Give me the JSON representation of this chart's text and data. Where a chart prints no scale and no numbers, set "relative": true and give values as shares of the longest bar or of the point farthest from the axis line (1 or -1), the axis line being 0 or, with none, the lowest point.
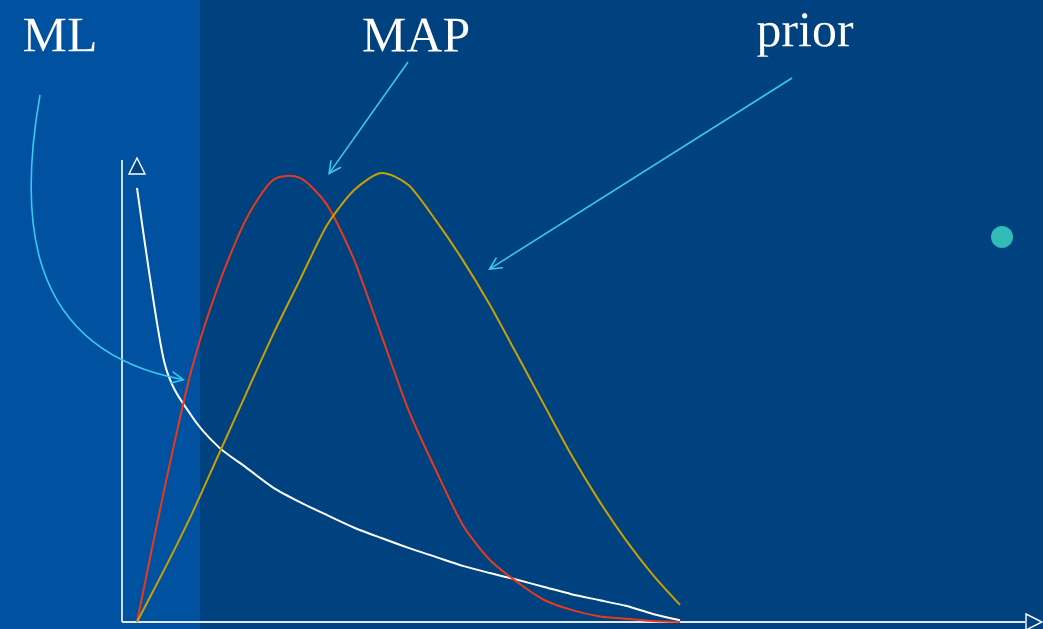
{
  "chart_data": {
    "type": "line",
    "relative": true,
    "marker": "none",
    "line_style": "solid",
    "categories": [
      null,
      null,
      null,
      null,
      null,
      null,
      null,
      null,
      null,
      null,
      null,
      null,
      null,
      null,
      null,
      null,
      null,
      null,
      null,
      null,
      null
    ],
    "series": [
      {
        "name": "ML",
        "color": "#ffffff",
        "values": [
          0.967,
          0.58,
          0.46,
          0.39,
          0.345,
          0.3,
          0.267,
          0.238,
          0.21,
          0.187,
          0.165,
          0.145,
          0.125,
          0.109,
          0.094,
          0.078,
          0.062,
          0.049,
          0.036,
          0.018,
          0.004
        ]
      },
      {
        "name": "MAP",
        "color": "#e8391d",
        "values": [
          0,
          0.294,
          0.56,
          0.75,
          0.895,
          0.984,
          0.989,
          0.929,
          0.806,
          0.639,
          0.472,
          0.339,
          0.216,
          0.138,
          0.089,
          0.049,
          0.027,
          0.013,
          0.007,
          0.002,
          0
        ]
      },
      {
        "name": "prior",
        "color": "#c8a000",
        "values": [
          0,
          0.116,
          0.238,
          0.372,
          0.506,
          0.639,
          0.762,
          0.884,
          0.962,
          1.0,
          0.973,
          0.895,
          0.806,
          0.706,
          0.595,
          0.483,
          0.372,
          0.272,
          0.183,
          0.105,
          0.038
        ]
      }
    ]
  }
}
